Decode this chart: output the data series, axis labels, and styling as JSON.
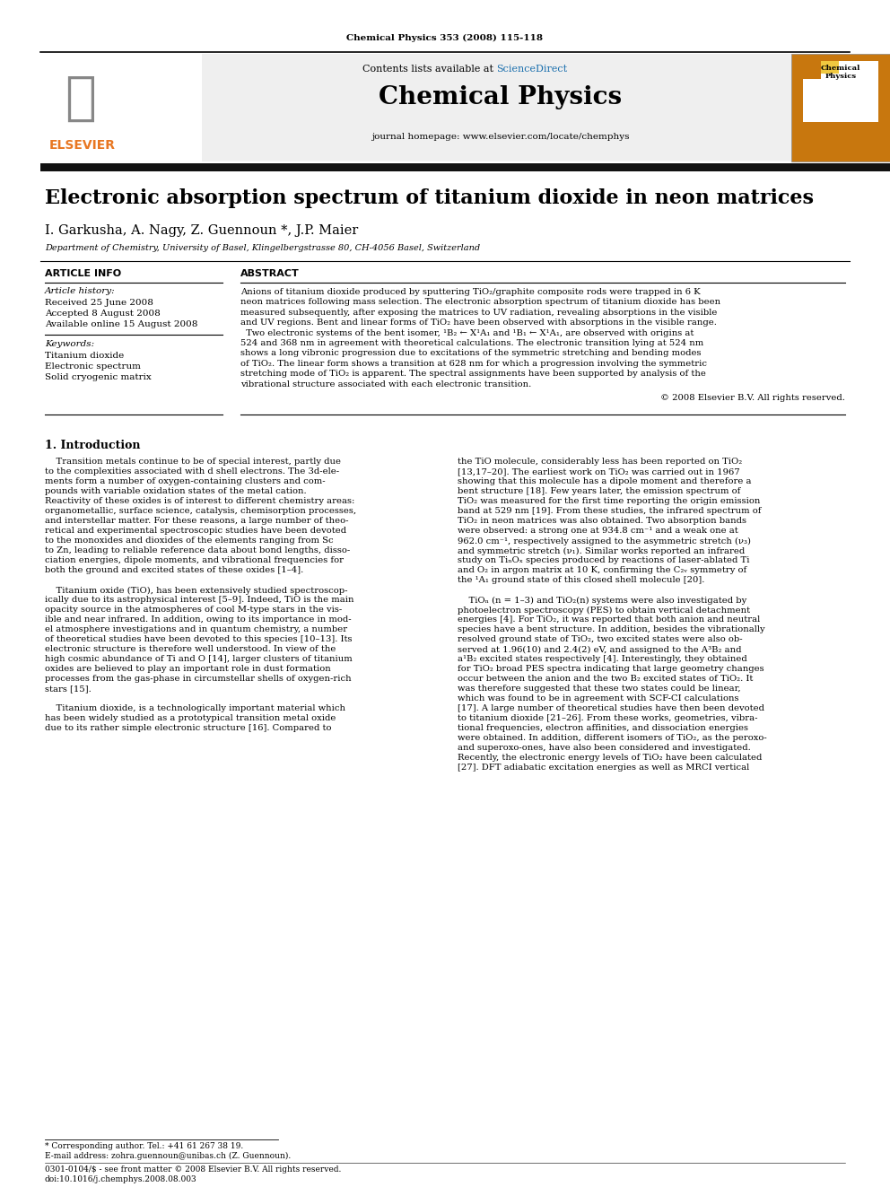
{
  "journal_ref": "Chemical Physics 353 (2008) 115-118",
  "contents_text": "Contents lists available at",
  "sciencedirect_text": "ScienceDirect",
  "journal_name": "Chemical Physics",
  "journal_homepage": "journal homepage: www.elsevier.com/locate/chemphys",
  "paper_title": "Electronic absorption spectrum of titanium dioxide in neon matrices",
  "authors": "I. Garkusha, A. Nagy, Z. Guennoun *, J.P. Maier",
  "affiliation": "Department of Chemistry, University of Basel, Klingelbergstrasse 80, CH-4056 Basel, Switzerland",
  "article_info_header": "ARTICLE INFO",
  "abstract_header": "ABSTRACT",
  "article_history_label": "Article history:",
  "received": "Received 25 June 2008",
  "accepted": "Accepted 8 August 2008",
  "available": "Available online 15 August 2008",
  "keywords_label": "Keywords:",
  "keyword1": "Titanium dioxide",
  "keyword2": "Electronic spectrum",
  "keyword3": "Solid cryogenic matrix",
  "copyright": "© 2008 Elsevier B.V. All rights reserved.",
  "section1_header": "1. Introduction",
  "footnote1": "* Corresponding author. Tel.: +41 61 267 38 19.",
  "footnote2": "E-mail address: zohra.guennoun@unibas.ch (Z. Guennoun).",
  "footnote3": "0301-0104/$ - see front matter © 2008 Elsevier B.V. All rights reserved.",
  "footnote4": "doi:10.1016/j.chemphys.2008.08.003",
  "header_bg_color": "#efefef",
  "elsevier_color": "#e87722",
  "sciencedirect_color": "#1a6fad",
  "black": "#000000",
  "dark_bar_color": "#111111",
  "abs_lines": [
    "Anions of titanium dioxide produced by sputtering TiO₂/graphite composite rods were trapped in 6 K",
    "neon matrices following mass selection. The electronic absorption spectrum of titanium dioxide has been",
    "measured subsequently, after exposing the matrices to UV radiation, revealing absorptions in the visible",
    "and UV regions. Bent and linear forms of TiO₂ have been observed with absorptions in the visible range.",
    "  Two electronic systems of the bent isomer, ¹B₂ ← X¹A₁ and ¹B₁ ← X¹A₁, are observed with origins at",
    "524 and 368 nm in agreement with theoretical calculations. The electronic transition lying at 524 nm",
    "shows a long vibronic progression due to excitations of the symmetric stretching and bending modes",
    "of TiO₂. The linear form shows a transition at 628 nm for which a progression involving the symmetric",
    "stretching mode of TiO₂ is apparent. The spectral assignments have been supported by analysis of the",
    "vibrational structure associated with each electronic transition."
  ],
  "left_body_lines": [
    "    Transition metals continue to be of special interest, partly due",
    "to the complexities associated with d shell electrons. The 3d-ele-",
    "ments form a number of oxygen-containing clusters and com-",
    "pounds with variable oxidation states of the metal cation.",
    "Reactivity of these oxides is of interest to different chemistry areas:",
    "organometallic, surface science, catalysis, chemisorption processes,",
    "and interstellar matter. For these reasons, a large number of theo-",
    "retical and experimental spectroscopic studies have been devoted",
    "to the monoxides and dioxides of the elements ranging from Sc",
    "to Zn, leading to reliable reference data about bond lengths, disso-",
    "ciation energies, dipole moments, and vibrational frequencies for",
    "both the ground and excited states of these oxides [1–4].",
    "",
    "    Titanium oxide (TiO), has been extensively studied spectroscop-",
    "ically due to its astrophysical interest [5–9]. Indeed, TiO is the main",
    "opacity source in the atmospheres of cool M-type stars in the vis-",
    "ible and near infrared. In addition, owing to its importance in mod-",
    "el atmosphere investigations and in quantum chemistry, a number",
    "of theoretical studies have been devoted to this species [10–13]. Its",
    "electronic structure is therefore well understood. In view of the",
    "high cosmic abundance of Ti and O [14], larger clusters of titanium",
    "oxides are believed to play an important role in dust formation",
    "processes from the gas-phase in circumstellar shells of oxygen-rich",
    "stars [15].",
    "",
    "    Titanium dioxide, is a technologically important material which",
    "has been widely studied as a prototypical transition metal oxide",
    "due to its rather simple electronic structure [16]. Compared to"
  ],
  "right_body_lines": [
    "the TiO molecule, considerably less has been reported on TiO₂",
    "[13,17–20]. The earliest work on TiO₂ was carried out in 1967",
    "showing that this molecule has a dipole moment and therefore a",
    "bent structure [18]. Few years later, the emission spectrum of",
    "TiO₂ was measured for the first time reporting the origin emission",
    "band at 529 nm [19]. From these studies, the infrared spectrum of",
    "TiO₂ in neon matrices was also obtained. Two absorption bands",
    "were observed: a strong one at 934.8 cm⁻¹ and a weak one at",
    "962.0 cm⁻¹, respectively assigned to the asymmetric stretch (ν₃)",
    "and symmetric stretch (ν₁). Similar works reported an infrared",
    "study on TiₙOₓ species produced by reactions of laser-ablated Ti",
    "and O₂ in argon matrix at 10 K, confirming the C₂ᵥ symmetry of",
    "the ¹A₁ ground state of this closed shell molecule [20].",
    "",
    "    TiOₙ (n = 1–3) and TiO₂(n) systems were also investigated by",
    "photoelectron spectroscopy (PES) to obtain vertical detachment",
    "energies [4]. For TiO₂, it was reported that both anion and neutral",
    "species have a bent structure. In addition, besides the vibrationally",
    "resolved ground state of TiO₂, two excited states were also ob-",
    "served at 1.96(10) and 2.4(2) eV, and assigned to the A³B₂ and",
    "a¹B₂ excited states respectively [4]. Interestingly, they obtained",
    "for TiO₂ broad PES spectra indicating that large geometry changes",
    "occur between the anion and the two B₂ excited states of TiO₂. It",
    "was therefore suggested that these two states could be linear,",
    "which was found to be in agreement with SCF-CI calculations",
    "[17]. A large number of theoretical studies have then been devoted",
    "to titanium dioxide [21–26]. From these works, geometries, vibra-",
    "tional frequencies, electron affinities, and dissociation energies",
    "were obtained. In addition, different isomers of TiO₂, as the peroxo-",
    "and superoxo-ones, have also been considered and investigated.",
    "Recently, the electronic energy levels of TiO₂ have been calculated",
    "[27]. DFT adiabatic excitation energies as well as MRCI vertical"
  ]
}
